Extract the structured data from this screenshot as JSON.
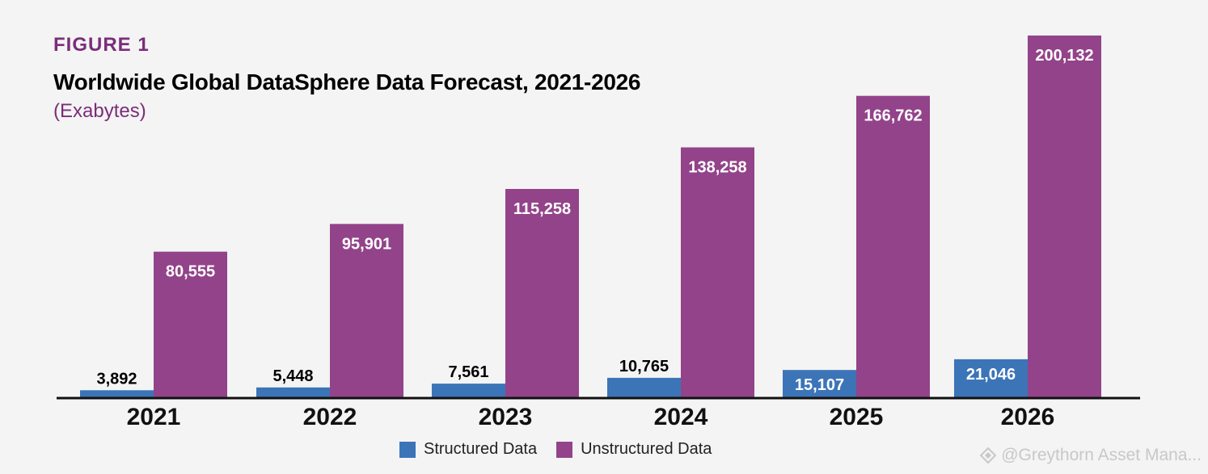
{
  "header": {
    "figure_label": "FIGURE 1",
    "title": "Worldwide Global DataSphere Data Forecast, 2021-2026",
    "subtitle": "(Exabytes)"
  },
  "colors": {
    "structured": "#3c74b8",
    "unstructured": "#93438a",
    "accent": "#7b2d7a",
    "axis": "#111111"
  },
  "watermark": {
    "text": "@Greythorn Asset Mana..."
  },
  "chart_data": {
    "type": "bar",
    "title": "Worldwide Global DataSphere Data Forecast, 2021-2026",
    "subtitle": "(Exabytes)",
    "xlabel": "",
    "ylabel": "",
    "categories": [
      "2021",
      "2022",
      "2023",
      "2024",
      "2025",
      "2026"
    ],
    "series": [
      {
        "name": "Structured Data",
        "values": [
          3892,
          5448,
          7561,
          10765,
          15107,
          21046
        ],
        "labels": [
          "3,892",
          "5,448",
          "7,561",
          "10,765",
          "15,107",
          "21,046"
        ]
      },
      {
        "name": "Unstructured Data",
        "values": [
          80555,
          95901,
          115258,
          138258,
          166762,
          200132
        ],
        "labels": [
          "80,555",
          "95,901",
          "115,258",
          "138,258",
          "166,762",
          "200,132"
        ]
      }
    ],
    "ylim": [
      0,
      200132
    ],
    "grid": false,
    "legend": "bottom-center"
  }
}
